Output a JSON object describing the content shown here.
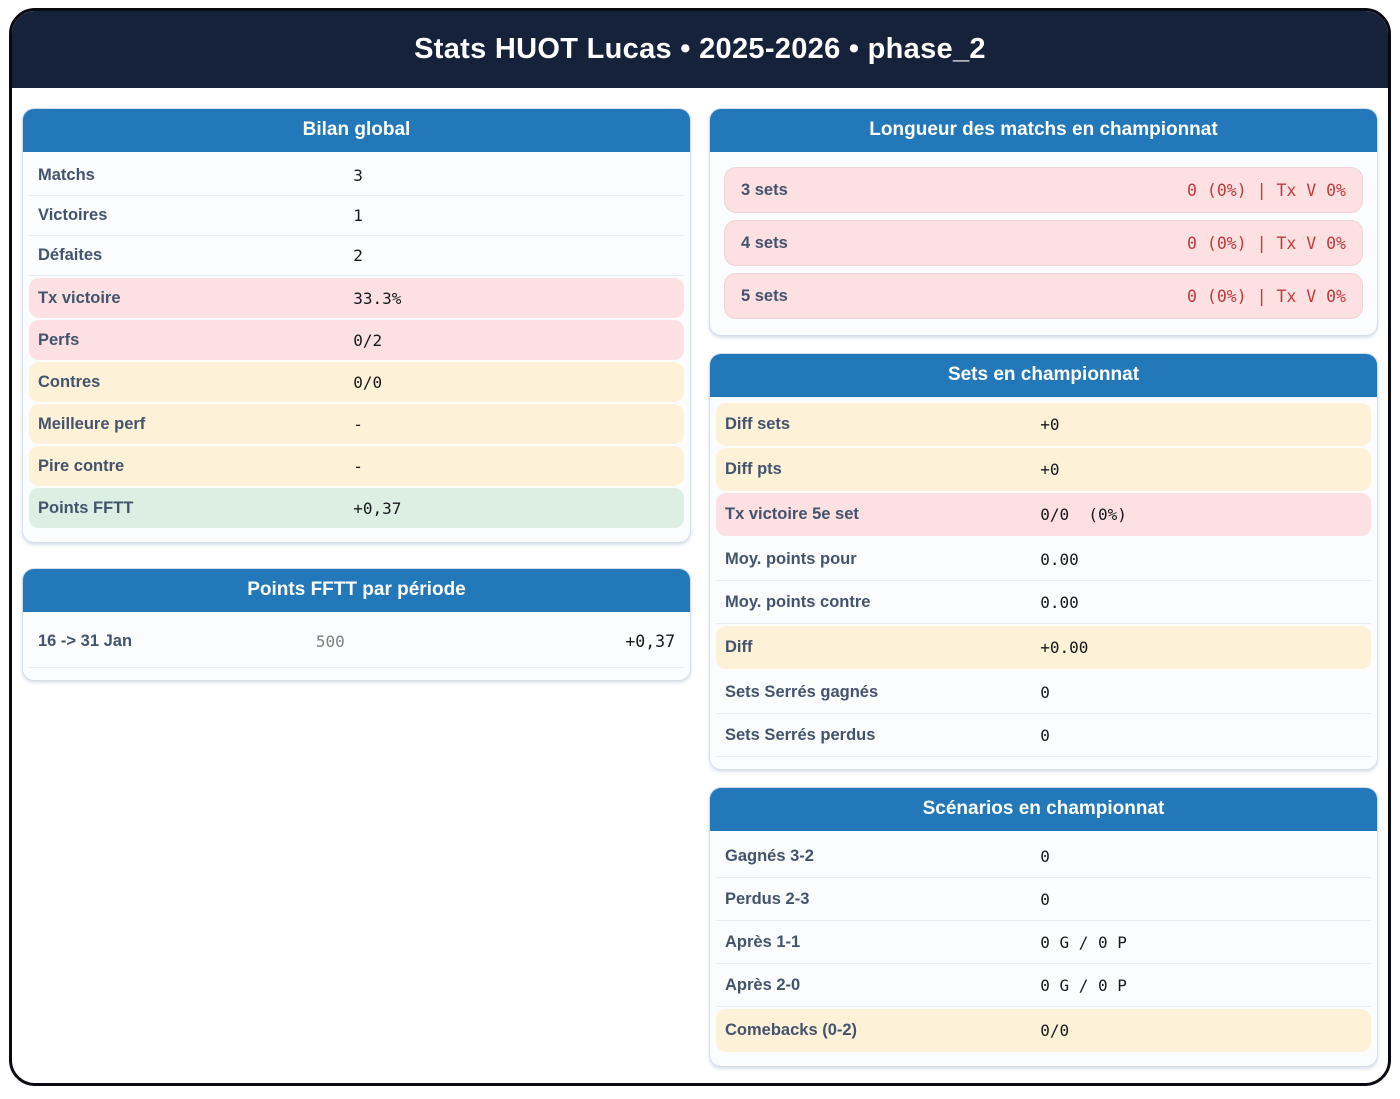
{
  "header": {
    "title": "Stats HUOT Lucas • 2025-2026 • phase_2"
  },
  "colors": {
    "accent_blue": "#2278b9",
    "header_navy": "#16213a",
    "status_pink": "#fce0e2",
    "status_cream": "#fdf1d8",
    "status_green": "#dcefe2",
    "alert_red": "#c23a3a"
  },
  "cards": {
    "bilan": {
      "title": "Bilan global",
      "rows": [
        {
          "label": "Matchs",
          "value": "3",
          "tone": "plain"
        },
        {
          "label": "Victoires",
          "value": "1",
          "tone": "plain"
        },
        {
          "label": "Défaites",
          "value": "2",
          "tone": "plain"
        },
        {
          "label": "Tx victoire",
          "value": "33.3%",
          "tone": "pink"
        },
        {
          "label": "Perfs",
          "value": "0/2",
          "tone": "pink"
        },
        {
          "label": "Contres",
          "value": "0/0",
          "tone": "cream"
        },
        {
          "label": "Meilleure perf",
          "value": "-",
          "tone": "cream"
        },
        {
          "label": "Pire contre",
          "value": "-",
          "tone": "cream"
        },
        {
          "label": "Points FFTT",
          "value": "+0,37",
          "tone": "green"
        }
      ]
    },
    "periode": {
      "title": "Points FFTT par période",
      "rows": [
        {
          "label": "16 -> 31 Jan",
          "mid": "500",
          "value": "+0,37"
        }
      ]
    },
    "longueur": {
      "title": "Longueur des matchs en championnat",
      "rows": [
        {
          "label": "3 sets",
          "value": "0 (0%) | Tx V 0%"
        },
        {
          "label": "4 sets",
          "value": "0 (0%) | Tx V 0%"
        },
        {
          "label": "5 sets",
          "value": "0 (0%) | Tx V 0%"
        }
      ]
    },
    "sets": {
      "title": "Sets en championnat",
      "rows": [
        {
          "label": "Diff sets",
          "value": "+0",
          "tone": "cream"
        },
        {
          "label": "Diff pts",
          "value": "+0",
          "tone": "cream"
        },
        {
          "label": "Tx victoire 5e set",
          "value": "0/0  (0%)",
          "tone": "pink"
        },
        {
          "label": "Moy. points pour",
          "value": "0.00",
          "tone": "plain"
        },
        {
          "label": "Moy. points contre",
          "value": "0.00",
          "tone": "plain"
        },
        {
          "label": "Diff",
          "value": "+0.00",
          "tone": "cream"
        },
        {
          "label": "Sets Serrés gagnés",
          "value": "0",
          "tone": "plain"
        },
        {
          "label": "Sets Serrés perdus",
          "value": "0",
          "tone": "plain"
        }
      ]
    },
    "scenarios": {
      "title": "Scénarios en championnat",
      "rows": [
        {
          "label": "Gagnés 3-2",
          "value": "0",
          "tone": "plain"
        },
        {
          "label": "Perdus 2-3",
          "value": "0",
          "tone": "plain"
        },
        {
          "label": "Après 1-1",
          "value": "0 G / 0 P",
          "tone": "plain"
        },
        {
          "label": "Après 2-0",
          "value": "0 G / 0 P",
          "tone": "plain"
        },
        {
          "label": "Comebacks (0-2)",
          "value": "0/0",
          "tone": "cream"
        }
      ]
    }
  }
}
